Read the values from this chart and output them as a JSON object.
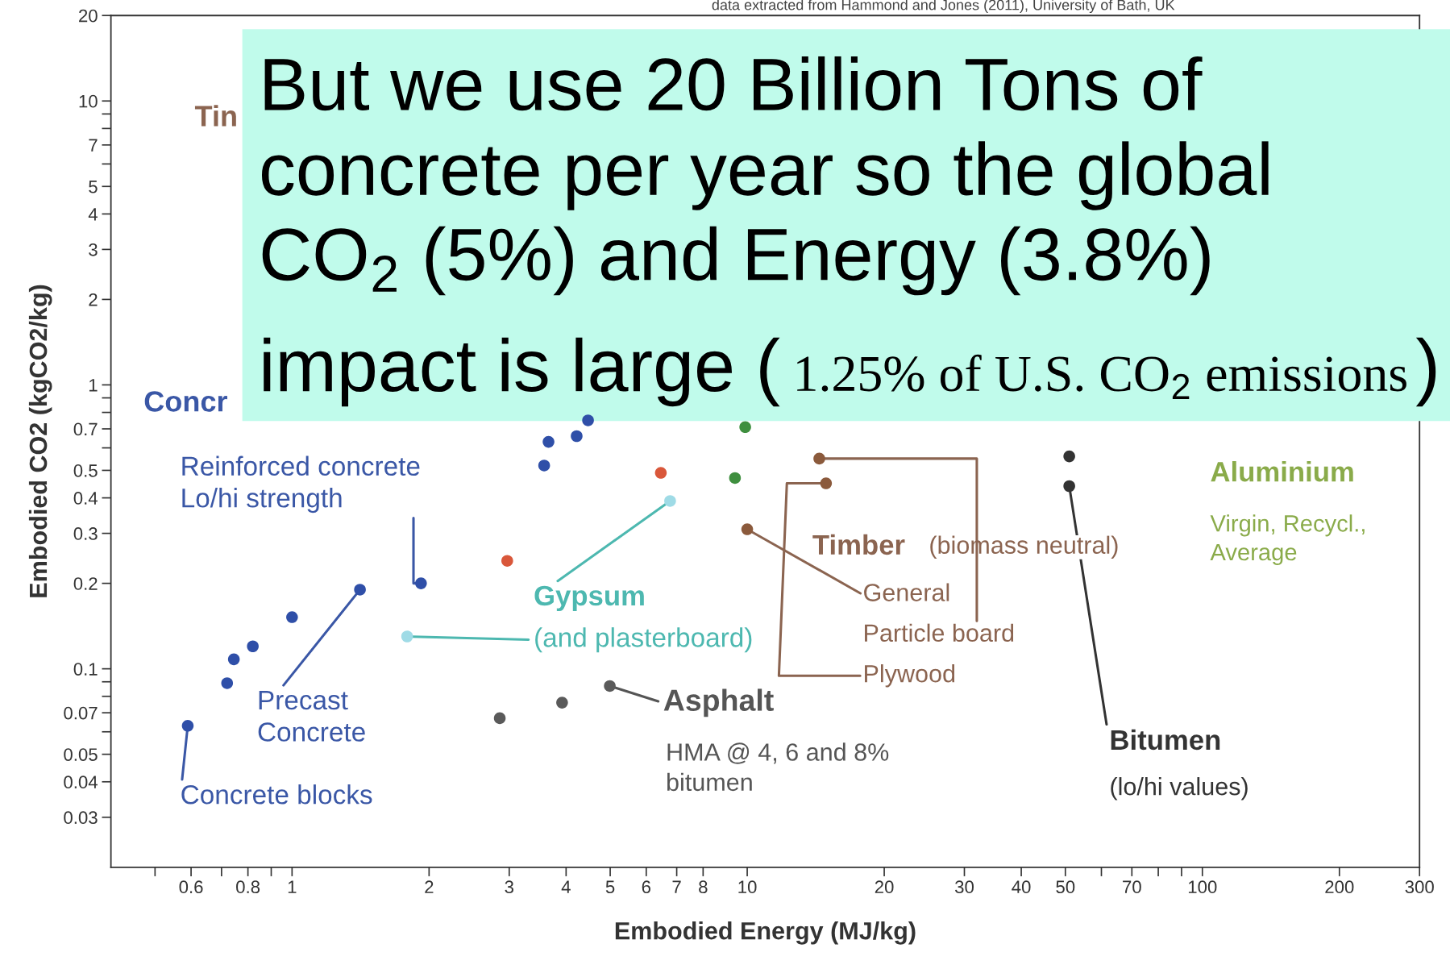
{
  "chart_data": {
    "type": "scatter",
    "xlabel": "Embodied Energy (MJ/kg)",
    "ylabel": "Embodied CO2 (kgCO2/kg)",
    "log": "xy",
    "xlim": [
      0.4,
      300
    ],
    "ylim": [
      0.02,
      20
    ],
    "xticks": [
      {
        "value": 0.5,
        "label": null
      },
      0.6,
      {
        "value": 0.7,
        "label": null
      },
      0.8,
      {
        "value": 0.9,
        "label": null
      },
      1,
      2,
      3,
      4,
      5,
      6,
      7,
      8,
      10,
      20,
      30,
      40,
      50,
      {
        "value": 60,
        "label": null
      },
      70,
      {
        "value": 80,
        "label": null
      },
      {
        "value": 90,
        "label": null
      },
      100,
      200,
      300
    ],
    "yticks": [
      0.03,
      0.04,
      0.05,
      {
        "value": 0.06,
        "label": null
      },
      0.07,
      {
        "value": 0.08,
        "label": null
      },
      {
        "value": 0.09,
        "label": null
      },
      0.1,
      0.2,
      0.3,
      0.4,
      0.5,
      {
        "value": 0.6,
        "label": null
      },
      0.7,
      {
        "value": 0.8,
        "label": null
      },
      {
        "value": 0.9,
        "label": null
      },
      1,
      2,
      3,
      4,
      5,
      {
        "value": 6,
        "label": null
      },
      7,
      {
        "value": 8,
        "label": null
      },
      {
        "value": 9,
        "label": null
      },
      10,
      20
    ],
    "grid": false,
    "marker": "circle",
    "series": [
      {
        "color": "#2f4fa8",
        "x": [
          0.59,
          0.72,
          0.745,
          0.82,
          1.0,
          1.41,
          1.92
        ],
        "values": [
          0.063,
          0.089,
          0.108,
          0.12,
          0.152,
          0.19,
          0.2
        ]
      },
      {
        "color": "#2f4fa8",
        "x": [
          3.58,
          3.66,
          4.22,
          4.47
        ],
        "values": [
          0.52,
          0.63,
          0.66,
          0.75
        ]
      },
      {
        "color": "#d9573a",
        "x": [
          2.97,
          6.46
        ],
        "values": [
          0.24,
          0.49
        ]
      },
      {
        "color": "#9fdbe6",
        "x": [
          1.79,
          6.77
        ],
        "values": [
          0.13,
          0.39
        ]
      },
      {
        "color": "#5a5a5a",
        "x": [
          2.86,
          3.92,
          4.99
        ],
        "values": [
          0.067,
          0.076,
          0.087
        ]
      },
      {
        "color": "#333333",
        "x": [
          51,
          51
        ],
        "values": [
          0.56,
          0.44
        ]
      },
      {
        "color": "#8b5a3c",
        "x": [
          10,
          14.4,
          14.9
        ],
        "values": [
          0.31,
          0.55,
          0.45
        ]
      },
      {
        "color": "#3f8f3f",
        "x": [
          9.4,
          9.9
        ],
        "values": [
          0.47,
          0.71
        ]
      }
    ],
    "annotations": [
      "data extracted from Hammond and Jones (2011), University of Bath, UK",
      "Tin",
      "Concr",
      "But we use 20 Billion Tons of\nconcrete per year so the global\nCO$_{2}$ (5%) and Energy (3.8%)",
      "impact is large (",
      "1.25% of U.S. CO$_{2}$ emissions",
      ")",
      {
        "text": "Reinforced concrete\nLo/hi strength",
        "x": 1.92,
        "y": 0.2
      },
      {
        "text": "Precast\nConcrete",
        "x": 1.41,
        "y": 0.19
      },
      {
        "text": "Concrete blocks",
        "x": 0.59,
        "y": 0.063
      },
      {
        "text": "Gypsum",
        "x": 6.77,
        "y": 0.39
      },
      {
        "text": "(and plasterboard)",
        "x": 1.79,
        "y": 0.13
      },
      {
        "text": "Asphalt",
        "x": 4.99,
        "y": 0.087
      },
      "HMA @ 4, 6 and 8%\nbitumen",
      "Timber",
      "(biomass neutral)",
      {
        "text": "General",
        "x": 10,
        "y": 0.31
      },
      {
        "text": "Particle board",
        "x": 14.4,
        "y": 0.55
      },
      {
        "text": "Plywood",
        "x": 14.9,
        "y": 0.45
      },
      {
        "text": "Bitumen",
        "x": 51,
        "y": 0.44
      },
      "(lo/hi values)",
      "Aluminium",
      "Virgin, Recycl.,\nAverage"
    ]
  }
}
